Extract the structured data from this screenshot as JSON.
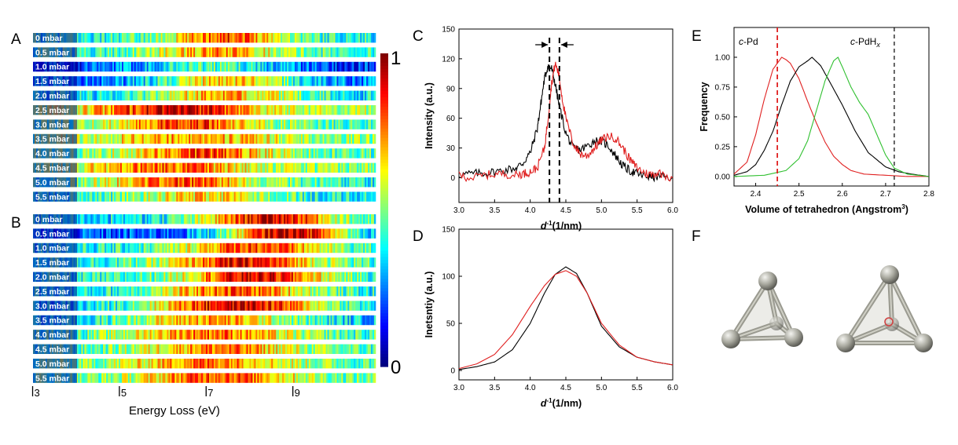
{
  "panels": {
    "A": "A",
    "B": "B",
    "C": "C",
    "D": "D",
    "E": "E",
    "F": "F"
  },
  "heatmap": {
    "pressures_A": [
      "0 mbar",
      "0.5 mbar",
      "1.0 mbar",
      "1.5 mbar",
      "2.0 mbar",
      "2.5 mbar",
      "3.0 mbar",
      "3.5 mbar",
      "4.0 mbar",
      "4.5 mbar",
      "5.0 mbar",
      "5.5 mbar"
    ],
    "pressures_B": [
      "0 mbar",
      "0.5 mbar",
      "1.0 mbar",
      "1.5 mbar",
      "2.0 mbar",
      "2.5 mbar",
      "3.0 mbar",
      "3.5 mbar",
      "4.0 mbar",
      "4.5 mbar",
      "5.0 mbar",
      "5.5 mbar"
    ],
    "x_ticks": [
      "3",
      "5",
      "7",
      "9"
    ],
    "xlabel": "Energy Loss (eV)",
    "colorbar_max": "1",
    "colorbar_min": "0"
  },
  "chart_data": [
    {
      "panel": "A",
      "type": "heatmap",
      "x_range": [
        2.9,
        10.8
      ],
      "rows": [
        "0 mbar",
        "0.5 mbar",
        "1.0 mbar",
        "1.5 mbar",
        "2.0 mbar",
        "2.5 mbar",
        "3.0 mbar",
        "3.5 mbar",
        "4.0 mbar",
        "4.5 mbar",
        "5.0 mbar",
        "5.5 mbar"
      ],
      "row_profiles": [
        {
          "base": 0.4,
          "peak": 0.82,
          "center": 7.4,
          "width": 1.4
        },
        {
          "base": 0.42,
          "peak": 0.72,
          "center": 7.2,
          "width": 1.6
        },
        {
          "base": 0.15,
          "peak": 0.45,
          "center": 7.0,
          "width": 2.0
        },
        {
          "base": 0.25,
          "peak": 0.68,
          "center": 7.4,
          "width": 1.6
        },
        {
          "base": 0.35,
          "peak": 0.7,
          "center": 7.3,
          "width": 1.8
        },
        {
          "base": 0.55,
          "peak": 0.92,
          "center": 6.2,
          "width": 1.8
        },
        {
          "base": 0.45,
          "peak": 0.85,
          "center": 6.4,
          "width": 1.7
        },
        {
          "base": 0.5,
          "peak": 0.72,
          "center": 6.5,
          "width": 2.2
        },
        {
          "base": 0.45,
          "peak": 0.82,
          "center": 6.8,
          "width": 1.8
        },
        {
          "base": 0.5,
          "peak": 0.78,
          "center": 6.0,
          "width": 1.9
        },
        {
          "base": 0.4,
          "peak": 0.8,
          "center": 6.3,
          "width": 2.0
        },
        {
          "base": 0.35,
          "peak": 0.65,
          "center": 6.8,
          "width": 2.0
        }
      ],
      "scale": [
        0,
        1
      ]
    },
    {
      "panel": "B",
      "type": "heatmap",
      "x_range": [
        2.9,
        10.8
      ],
      "rows": [
        "0 mbar",
        "0.5 mbar",
        "1.0 mbar",
        "1.5 mbar",
        "2.0 mbar",
        "2.5 mbar",
        "3.0 mbar",
        "3.5 mbar",
        "4.0 mbar",
        "4.5 mbar",
        "5.0 mbar",
        "5.5 mbar"
      ],
      "row_profiles": [
        {
          "base": 0.35,
          "peak": 0.92,
          "center": 8.4,
          "width": 1.6
        },
        {
          "base": 0.2,
          "peak": 0.96,
          "center": 8.8,
          "width": 1.5
        },
        {
          "base": 0.38,
          "peak": 0.82,
          "center": 8.0,
          "width": 1.8
        },
        {
          "base": 0.4,
          "peak": 0.88,
          "center": 7.8,
          "width": 1.8
        },
        {
          "base": 0.38,
          "peak": 0.9,
          "center": 8.0,
          "width": 1.8
        },
        {
          "base": 0.35,
          "peak": 0.8,
          "center": 7.6,
          "width": 2.0
        },
        {
          "base": 0.3,
          "peak": 0.92,
          "center": 7.6,
          "width": 2.2
        },
        {
          "base": 0.3,
          "peak": 0.72,
          "center": 7.0,
          "width": 2.2
        },
        {
          "base": 0.42,
          "peak": 0.78,
          "center": 7.0,
          "width": 2.0
        },
        {
          "base": 0.42,
          "peak": 0.76,
          "center": 7.2,
          "width": 2.0
        },
        {
          "base": 0.45,
          "peak": 0.78,
          "center": 7.0,
          "width": 2.0
        },
        {
          "base": 0.45,
          "peak": 0.82,
          "center": 7.2,
          "width": 1.9
        }
      ],
      "scale": [
        0,
        1
      ]
    },
    {
      "panel": "C",
      "type": "line",
      "xlabel": "d",
      "xlabel_sup": "-1",
      "xlabel_unit": "(1/nm)",
      "ylabel": "Intensity (a.u.)",
      "xlim": [
        3.0,
        6.0
      ],
      "ylim": [
        -25,
        150
      ],
      "x_ticks": [
        "3.0",
        "3.5",
        "4.0",
        "4.5",
        "5.0",
        "5.5",
        "6.0"
      ],
      "y_ticks": [
        "0",
        "30",
        "60",
        "90",
        "120",
        "150"
      ],
      "series": [
        {
          "color": "#000000",
          "x": [
            3.0,
            3.2,
            3.4,
            3.6,
            3.8,
            3.9,
            4.0,
            4.1,
            4.15,
            4.2,
            4.25,
            4.3,
            4.35,
            4.4,
            4.5,
            4.6,
            4.7,
            4.8,
            4.9,
            5.0,
            5.1,
            5.2,
            5.3,
            5.4,
            5.5,
            5.6,
            5.7,
            5.8,
            6.0
          ],
          "y": [
            3,
            4,
            5,
            7,
            10,
            15,
            25,
            50,
            75,
            100,
            113,
            110,
            95,
            75,
            45,
            30,
            28,
            32,
            37,
            37,
            32,
            22,
            12,
            7,
            4,
            2,
            1,
            1,
            0
          ]
        },
        {
          "color": "#e02020",
          "x": [
            3.0,
            3.2,
            3.4,
            3.6,
            3.8,
            3.9,
            4.0,
            4.1,
            4.2,
            4.25,
            4.3,
            4.35,
            4.4,
            4.45,
            4.5,
            4.6,
            4.7,
            4.8,
            4.9,
            5.0,
            5.1,
            5.2,
            5.3,
            5.4,
            5.5,
            5.6,
            5.7,
            5.8,
            6.0
          ],
          "y": [
            2,
            0,
            3,
            4,
            3,
            4,
            6,
            10,
            30,
            60,
            95,
            115,
            105,
            80,
            60,
            35,
            24,
            22,
            30,
            38,
            42,
            40,
            30,
            18,
            10,
            5,
            3,
            5,
            0
          ]
        }
      ],
      "annotations": {
        "dashed_lines_x": [
          4.27,
          4.41
        ]
      }
    },
    {
      "panel": "D",
      "type": "line",
      "xlabel": "d",
      "xlabel_sup": "-1",
      "xlabel_unit": "(1/nm)",
      "ylabel": "Inetsntiy (a.u.)",
      "xlim": [
        3.0,
        6.0
      ],
      "ylim": [
        -10,
        150
      ],
      "x_ticks": [
        "3.0",
        "3.5",
        "4.0",
        "4.5",
        "5.0",
        "5.5",
        "6.0"
      ],
      "y_ticks": [
        "0",
        "50",
        "100",
        "150"
      ],
      "series": [
        {
          "color": "#000000",
          "x": [
            3.0,
            3.25,
            3.5,
            3.75,
            4.0,
            4.2,
            4.35,
            4.5,
            4.65,
            4.8,
            5.0,
            5.25,
            5.5,
            5.75,
            6.0
          ],
          "y": [
            1,
            4,
            9,
            22,
            50,
            82,
            102,
            110,
            103,
            82,
            47,
            25,
            14,
            9,
            6
          ]
        },
        {
          "color": "#e02020",
          "x": [
            3.0,
            3.25,
            3.5,
            3.75,
            4.0,
            4.2,
            4.35,
            4.5,
            4.65,
            4.8,
            5.0,
            5.25,
            5.5,
            5.75,
            6.0
          ],
          "y": [
            2,
            7,
            17,
            38,
            68,
            90,
            102,
            106,
            100,
            82,
            50,
            27,
            14,
            9,
            6
          ]
        }
      ]
    },
    {
      "panel": "E",
      "type": "line",
      "xlabel": "Volume of tetrahedron (Angstrom",
      "xlabel_sup": "3",
      "xlabel_unit": ")",
      "ylabel": "Frequency",
      "xlim": [
        2.35,
        2.8
      ],
      "ylim": [
        -0.08,
        1.25
      ],
      "x_ticks": [
        "2.4",
        "2.5",
        "2.6",
        "2.7",
        "2.8"
      ],
      "y_ticks": [
        "0.00",
        "0.25",
        "0.50",
        "0.75",
        "1.00"
      ],
      "series": [
        {
          "color": "#e02020",
          "x": [
            2.35,
            2.38,
            2.4,
            2.42,
            2.44,
            2.46,
            2.47,
            2.48,
            2.5,
            2.52,
            2.54,
            2.56,
            2.58,
            2.6,
            2.62,
            2.65,
            2.7,
            2.75,
            2.8
          ],
          "y": [
            0.02,
            0.12,
            0.35,
            0.65,
            0.9,
            1.0,
            0.98,
            0.95,
            0.82,
            0.63,
            0.45,
            0.29,
            0.17,
            0.1,
            0.05,
            0.02,
            0.01,
            0.0,
            0.0
          ]
        },
        {
          "color": "#000000",
          "x": [
            2.35,
            2.38,
            2.4,
            2.42,
            2.44,
            2.46,
            2.48,
            2.5,
            2.52,
            2.53,
            2.55,
            2.57,
            2.6,
            2.63,
            2.66,
            2.7,
            2.73,
            2.76,
            2.8
          ],
          "y": [
            0.01,
            0.04,
            0.1,
            0.22,
            0.38,
            0.6,
            0.8,
            0.92,
            0.97,
            1.0,
            0.93,
            0.8,
            0.6,
            0.38,
            0.2,
            0.08,
            0.04,
            0.02,
            0.0
          ]
        },
        {
          "color": "#30c030",
          "x": [
            2.35,
            2.42,
            2.47,
            2.5,
            2.52,
            2.54,
            2.56,
            2.58,
            2.59,
            2.6,
            2.62,
            2.64,
            2.66,
            2.68,
            2.7,
            2.72,
            2.75,
            2.8
          ],
          "y": [
            0.0,
            0.01,
            0.05,
            0.15,
            0.3,
            0.55,
            0.8,
            0.97,
            1.0,
            0.92,
            0.75,
            0.62,
            0.52,
            0.35,
            0.18,
            0.07,
            0.02,
            0.0
          ]
        }
      ],
      "annotations": {
        "red_dashed_x": 2.45,
        "black_dashed_x": 2.72,
        "label_left": "c-Pd",
        "label_right": "c-PdH",
        "label_right_sub": "x"
      }
    }
  ]
}
